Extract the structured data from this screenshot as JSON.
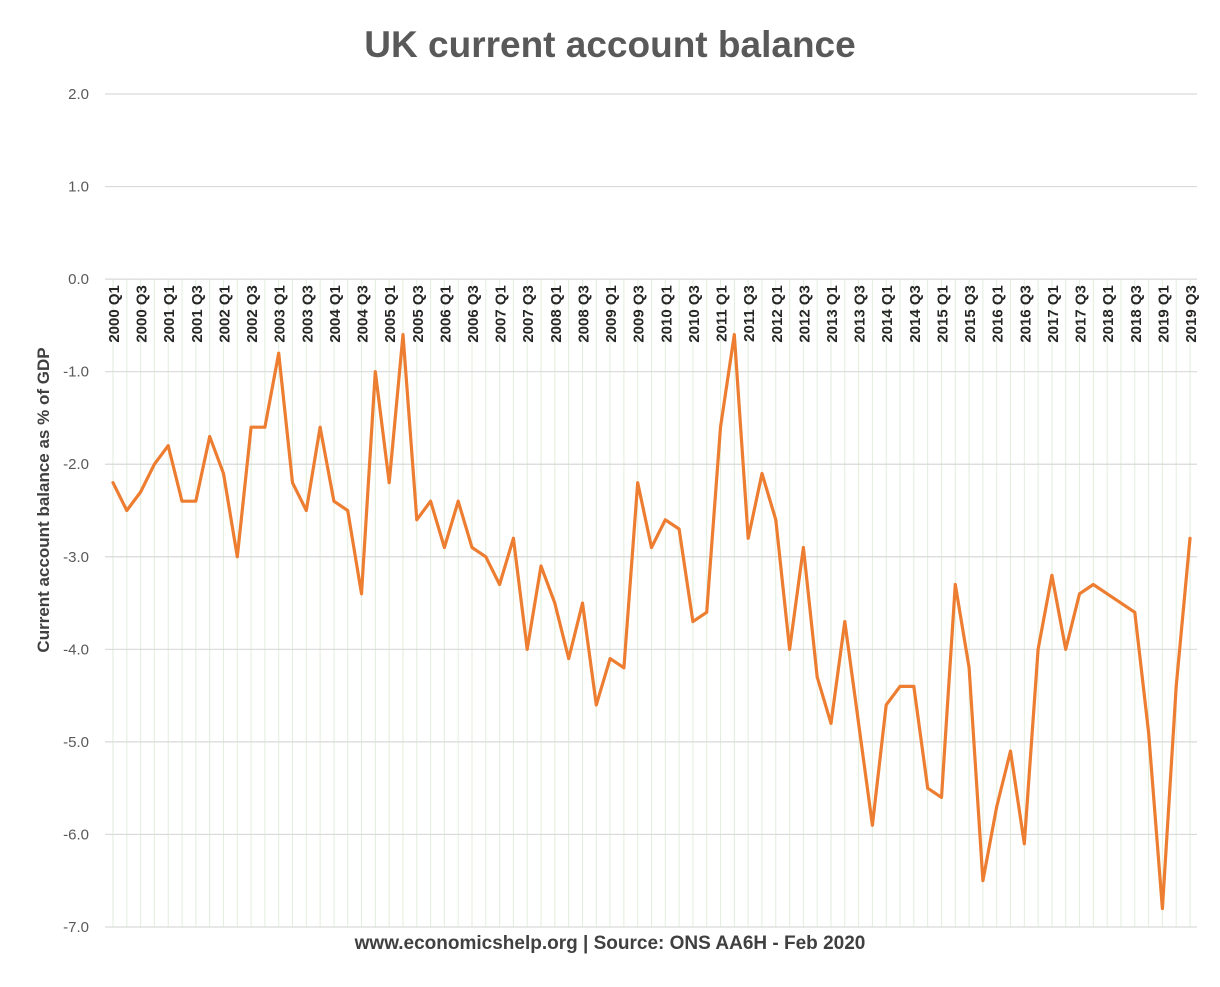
{
  "chart_data": {
    "type": "line",
    "title": "UK current account balance",
    "ylabel": "Current account balance as % of GDP",
    "footer": "www.economicshelp.org | Source: ONS AA6H - Feb 2020",
    "ylim": [
      -7,
      2
    ],
    "yticks": [
      "2.0",
      "1.0",
      "0.0",
      "-1.0",
      "-2.0",
      "-3.0",
      "-4.0",
      "-5.0",
      "-6.0",
      "-7.0"
    ],
    "grid": true,
    "line_color": "#ED7D31",
    "categories": [
      "2000 Q1",
      "2000 Q2",
      "2000 Q3",
      "2000 Q4",
      "2001 Q1",
      "2001 Q2",
      "2001 Q3",
      "2001 Q4",
      "2002 Q1",
      "2002 Q2",
      "2002 Q3",
      "2002 Q4",
      "2003 Q1",
      "2003 Q2",
      "2003 Q3",
      "2003 Q4",
      "2004 Q1",
      "2004 Q2",
      "2004 Q3",
      "2004 Q4",
      "2005 Q1",
      "2005 Q2",
      "2005 Q3",
      "2005 Q4",
      "2006 Q1",
      "2006 Q2",
      "2006 Q3",
      "2006 Q4",
      "2007 Q1",
      "2007 Q2",
      "2007 Q3",
      "2007 Q4",
      "2008 Q1",
      "2008 Q2",
      "2008 Q3",
      "2008 Q4",
      "2009 Q1",
      "2009 Q2",
      "2009 Q3",
      "2009 Q4",
      "2010 Q1",
      "2010 Q2",
      "2010 Q3",
      "2010 Q4",
      "2011 Q1",
      "2011 Q2",
      "2011 Q3",
      "2011 Q4",
      "2012 Q1",
      "2012 Q2",
      "2012 Q3",
      "2012 Q4",
      "2013 Q1",
      "2013 Q2",
      "2013 Q3",
      "2013 Q4",
      "2014 Q1",
      "2014 Q2",
      "2014 Q3",
      "2014 Q4",
      "2015 Q1",
      "2015 Q2",
      "2015 Q3",
      "2015 Q4",
      "2016 Q1",
      "2016 Q2",
      "2016 Q3",
      "2016 Q4",
      "2017 Q1",
      "2017 Q2",
      "2017 Q3",
      "2017 Q4",
      "2018 Q1",
      "2018 Q2",
      "2018 Q3",
      "2018 Q4",
      "2019 Q1",
      "2019 Q2",
      "2019 Q3"
    ],
    "series": [
      {
        "values": [
          -2.2,
          -2.5,
          -2.3,
          -2.0,
          -1.8,
          -2.4,
          -2.4,
          -1.7,
          -2.1,
          -3.0,
          -1.6,
          -1.6,
          -0.8,
          -2.2,
          -2.5,
          -1.6,
          -2.4,
          -2.5,
          -3.4,
          -1.0,
          -2.2,
          -0.6,
          -2.6,
          -2.4,
          -2.9,
          -2.4,
          -2.9,
          -3.0,
          -3.3,
          -2.8,
          -4.0,
          -3.1,
          -3.5,
          -4.1,
          -3.5,
          -4.6,
          -4.1,
          -4.2,
          -2.2,
          -2.9,
          -2.6,
          -2.7,
          -3.7,
          -3.6,
          -1.6,
          -0.6,
          -2.8,
          -2.1,
          -2.6,
          -4.0,
          -2.9,
          -4.3,
          -4.8,
          -3.7,
          -4.8,
          -5.9,
          -4.6,
          -4.4,
          -4.4,
          -5.5,
          -5.6,
          -3.3,
          -4.2,
          -6.5,
          -5.7,
          -5.1,
          -6.1,
          -4.0,
          -3.2,
          -4.0,
          -3.4,
          -3.3,
          -3.4,
          -3.5,
          -3.6,
          -4.9,
          -6.8,
          -4.4,
          -2.8
        ]
      }
    ]
  }
}
